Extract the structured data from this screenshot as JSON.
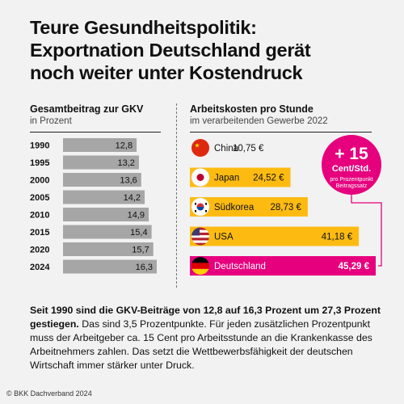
{
  "title_lines": [
    "Teure Gesundheitspolitik:",
    "Exportnation Deutschland gerät",
    "noch weiter unter Kostendruck"
  ],
  "left_panel": {
    "title": "Gesamtbeitrag zur GKV",
    "subtitle": "in Prozent"
  },
  "right_panel": {
    "title": "Arbeitskosten pro Stunde",
    "subtitle": "im verarbeitenden Gewerbe 2022"
  },
  "chart_data": [
    {
      "type": "bar",
      "orientation": "horizontal",
      "title": "Gesamtbeitrag zur GKV",
      "subtitle": "in Prozent",
      "categories": [
        "1990",
        "1995",
        "2000",
        "2005",
        "2010",
        "2015",
        "2020",
        "2024"
      ],
      "values": [
        12.8,
        13.2,
        13.6,
        14.2,
        14.9,
        15.4,
        15.7,
        16.3
      ],
      "value_labels": [
        "12,8",
        "13,2",
        "13,6",
        "14,2",
        "14,9",
        "15,4",
        "15,7",
        "16,3"
      ],
      "bar_color": "#a6a6a6",
      "xlim": [
        0,
        16.3
      ]
    },
    {
      "type": "bar",
      "orientation": "horizontal",
      "title": "Arbeitskosten pro Stunde",
      "subtitle": "im verarbeitenden Gewerbe 2022",
      "categories": [
        "China",
        "Japan",
        "Südkorea",
        "USA",
        "Deutschland"
      ],
      "values": [
        10.75,
        24.52,
        28.73,
        41.18,
        45.29
      ],
      "value_labels": [
        "10,75 €",
        "24,52 €",
        "28,73 €",
        "41,18 €",
        "45,29 €"
      ],
      "flags": [
        "flag-china-icon",
        "flag-japan-icon",
        "flag-south-korea-icon",
        "flag-usa-icon",
        "flag-germany-icon"
      ],
      "bar_colors": [
        "#f2f2f2",
        "#fdbb12",
        "#fdbb12",
        "#fdbb12",
        "#e6007e"
      ],
      "xlim": [
        0,
        45.29
      ],
      "annotation": {
        "big": "+ 15",
        "unit": "Cent/Std.",
        "small_lines": [
          "pro Prozentpunkt",
          "Beitragssatz"
        ],
        "color": "#e6007e"
      }
    }
  ],
  "paragraph": {
    "bold": "Seit 1990 sind die GKV-Beiträge von 12,8 auf 16,3 Prozent um 27,3 Prozent gestiegen.",
    "normal": " Das sind 3,5 Prozentpunkte. Für jeden zusätzlichen Prozentpunkt muss der Arbeitgeber ca. 15 Cent pro Arbeitsstunde an die Krankenkasse des Arbeitnehmers zahlen. Das setzt die Wettbewerbsfähigkeit der deutschen Wirtschaft immer stärker unter Druck."
  },
  "copyright": "© BKK Dachverband 2024",
  "colors": {
    "magenta": "#e6007e",
    "yellow": "#fdbb12",
    "grey_bar": "#a6a6a6",
    "background": "#f2f2f2"
  }
}
